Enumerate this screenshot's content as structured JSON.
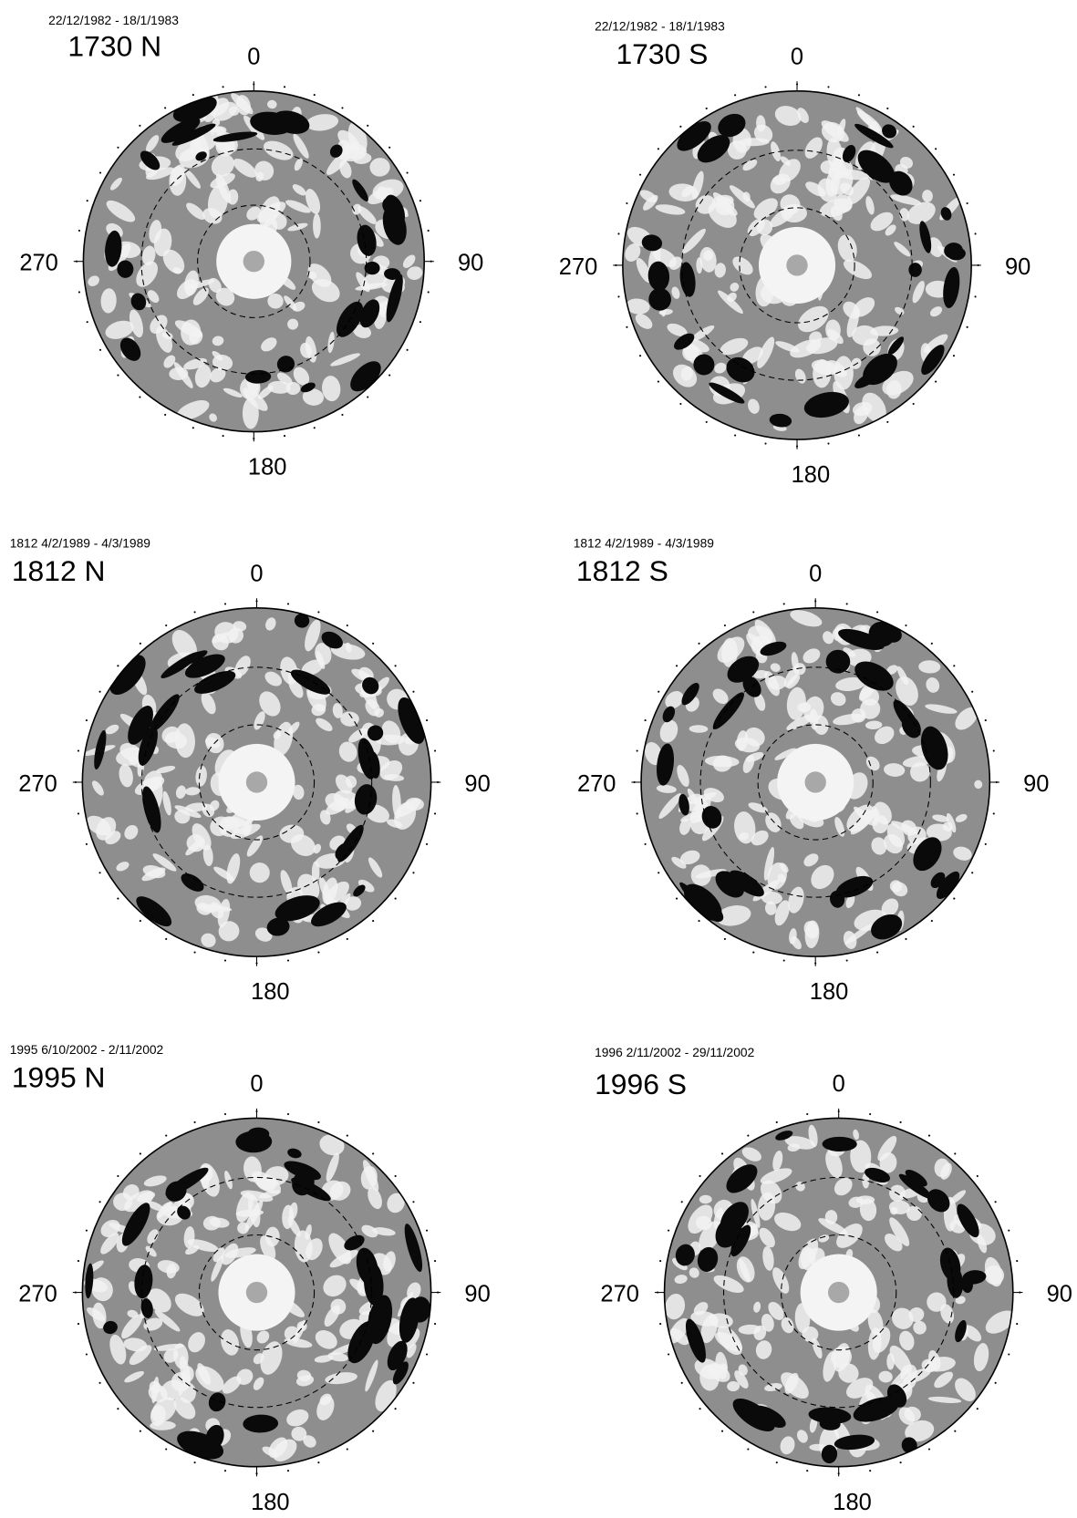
{
  "panels": [
    {
      "date": "22/12/1982 - 18/1/1983",
      "title": "1730 N",
      "labels": {
        "top": "0",
        "right": "90",
        "bottom": "180",
        "left": "270"
      }
    },
    {
      "date": "22/12/1982 - 18/1/1983",
      "title": "1730 S",
      "labels": {
        "top": "0",
        "right": "90",
        "bottom": "180",
        "left": "270"
      }
    },
    {
      "date": "1812 4/2/1989 - 4/3/1989",
      "title": "1812 N",
      "labels": {
        "top": "0",
        "right": "90",
        "bottom": "180",
        "left": "270"
      }
    },
    {
      "date": "1812 4/2/1989 - 4/3/1989",
      "title": "1812 S",
      "labels": {
        "top": "0",
        "right": "90",
        "bottom": "180",
        "left": "270"
      }
    },
    {
      "date": "1995 6/10/2002 - 2/11/2002",
      "title": "1995 N",
      "labels": {
        "top": "0",
        "right": "90",
        "bottom": "180",
        "left": "270"
      }
    },
    {
      "date": "1996 2/11/2002 - 29/11/2002",
      "title": "1996 S",
      "labels": {
        "top": "0",
        "right": "90",
        "bottom": "180",
        "left": "270"
      }
    }
  ]
}
